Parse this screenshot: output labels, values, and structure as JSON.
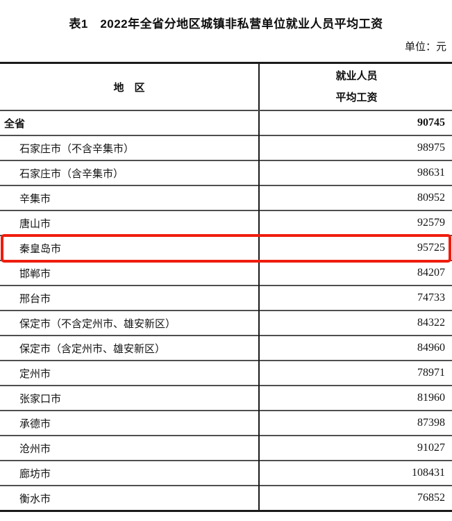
{
  "title": "表1　2022年全省分地区城镇非私营单位就业人员平均工资",
  "unit_label": "单位：元",
  "table": {
    "header": {
      "region": "地　区",
      "value_line1": "就业人员",
      "value_line2": "平均工资"
    },
    "highlight_color": "#ef1d0e",
    "highlighted_region": "秦皇岛市",
    "rows": [
      {
        "region": "全省",
        "value": "90745"
      },
      {
        "region": "石家庄市（不含辛集市）",
        "value": "98975"
      },
      {
        "region": "石家庄市（含辛集市）",
        "value": "98631"
      },
      {
        "region": "辛集市",
        "value": "80952"
      },
      {
        "region": "唐山市",
        "value": "92579"
      },
      {
        "region": "秦皇岛市",
        "value": "95725"
      },
      {
        "region": "邯郸市",
        "value": "84207"
      },
      {
        "region": "邢台市",
        "value": "74733"
      },
      {
        "region": "保定市（不含定州市、雄安新区）",
        "value": "84322"
      },
      {
        "region": "保定市（含定州市、雄安新区）",
        "value": "84960"
      },
      {
        "region": "定州市",
        "value": "78971"
      },
      {
        "region": "张家口市",
        "value": "81960"
      },
      {
        "region": "承德市",
        "value": "87398"
      },
      {
        "region": "沧州市",
        "value": "91027"
      },
      {
        "region": "廊坊市",
        "value": "108431"
      },
      {
        "region": "衡水市",
        "value": "76852"
      }
    ]
  }
}
